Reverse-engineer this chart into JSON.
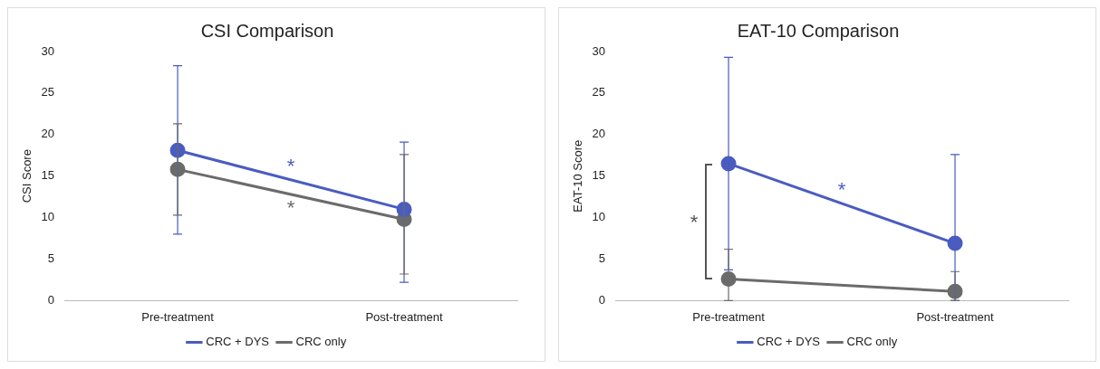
{
  "chart_data": [
    {
      "type": "line",
      "title": "CSI Comparison",
      "ylabel": "CSI Score",
      "categories": [
        "Pre-treatment",
        "Post-treatment"
      ],
      "series": [
        {
          "name": "CRC + DYS",
          "color": "#4a5cc0",
          "values": [
            18.1,
            11.0
          ],
          "errors": [
            [
              8.0,
              28.3
            ],
            [
              2.2,
              19.1
            ]
          ]
        },
        {
          "name": "CRC only",
          "color": "#6b6b6b",
          "values": [
            15.8,
            9.8
          ],
          "errors": [
            [
              10.3,
              21.3
            ],
            [
              3.2,
              17.6
            ]
          ]
        }
      ],
      "ylim": [
        0,
        30
      ],
      "yticks": [
        0,
        5,
        10,
        15,
        20,
        25,
        30
      ],
      "grid": false,
      "legend": "bottom",
      "marker": "circle",
      "line_style": "solid",
      "annotations": [
        "*",
        "*"
      ]
    },
    {
      "type": "line",
      "title": "EAT-10 Comparison",
      "ylabel": "EAT-10 Score",
      "categories": [
        "Pre-treatment",
        "Post-treatment"
      ],
      "series": [
        {
          "name": "CRC + DYS",
          "color": "#4a5cc0",
          "values": [
            16.5,
            6.9
          ],
          "errors": [
            [
              3.7,
              29.3
            ],
            [
              0,
              17.6
            ]
          ]
        },
        {
          "name": "CRC only",
          "color": "#6b6b6b",
          "values": [
            2.6,
            1.1
          ],
          "errors": [
            [
              0,
              6.2
            ],
            [
              0,
              3.5
            ]
          ]
        }
      ],
      "ylim": [
        0,
        30
      ],
      "yticks": [
        0,
        5,
        10,
        15,
        20,
        25,
        30
      ],
      "grid": false,
      "legend": "bottom",
      "marker": "circle",
      "line_style": "solid",
      "annotations": [
        "*",
        "*"
      ]
    }
  ]
}
